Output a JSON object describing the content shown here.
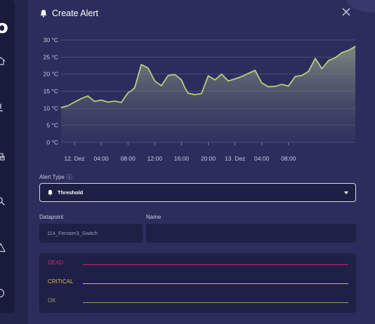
{
  "sidebar": {
    "logo_glyph": "o",
    "icons": [
      "home-icon",
      "alert-icon",
      "devices-icon",
      "search-icon",
      "warning-icon",
      "help-icon"
    ]
  },
  "modal": {
    "title": "Create Alert",
    "icons": {
      "title": "bell-icon",
      "close": "close-icon"
    }
  },
  "chart_data": {
    "type": "area",
    "title": "",
    "xlabel": "",
    "ylabel": "",
    "x_tick_labels": [
      "12. Dez",
      "04:00",
      "08:00",
      "12:00",
      "16:00",
      "20:00",
      "13. Dez",
      "04:00",
      "08:00"
    ],
    "y_tick_labels": [
      "0 °C",
      "5 °C",
      "10 °C",
      "15 °C",
      "20 °C",
      "25 °C",
      "30 °C"
    ],
    "ylim": [
      0,
      30
    ],
    "x_hours_since_start": [
      0,
      2,
      4,
      6,
      8,
      10,
      12,
      14,
      16,
      18,
      20,
      21,
      22,
      24,
      26,
      28,
      30,
      32,
      34,
      36,
      37,
      38,
      40,
      42,
      44,
      46,
      48,
      50,
      52,
      54,
      56,
      58,
      60,
      62,
      64,
      66,
      68,
      70,
      72,
      74,
      76,
      78,
      80,
      82,
      84,
      86,
      88
    ],
    "series": [
      {
        "color": "#b7d07a",
        "values": [
          10.2,
          10.7,
          11.8,
          12.8,
          13.6,
          12.0,
          12.4,
          11.8,
          12.1,
          11.7,
          14.5,
          15.1,
          16.0,
          22.8,
          21.8,
          18.0,
          16.6,
          19.6,
          19.9,
          18.3,
          16.0,
          14.4,
          14.0,
          14.3,
          19.5,
          18.3,
          20.0,
          18.0,
          18.6,
          19.3,
          20.2,
          21.1,
          17.4,
          16.3,
          16.4,
          17.0,
          16.5,
          19.3,
          19.6,
          20.8,
          24.6,
          21.6,
          24.0,
          24.8,
          26.3,
          27.0,
          28.1
        ]
      }
    ],
    "grid": true,
    "fill": true
  },
  "form": {
    "alert_type": {
      "label": "Alert Type",
      "selected": "Threshold",
      "info_icon": "info-icon",
      "dropdown_icon": "caret-down-icon"
    },
    "datapoint": {
      "label": "Datapoint",
      "value": "114_Fenster3_Switch"
    },
    "name": {
      "label": "Name",
      "value": ""
    }
  },
  "levels": [
    {
      "name": "DEAD",
      "color": "#d5206b"
    },
    {
      "name": "CRITICAL",
      "color": "#e0b64a"
    },
    {
      "name": "OK",
      "color": "#97a35f"
    }
  ]
}
